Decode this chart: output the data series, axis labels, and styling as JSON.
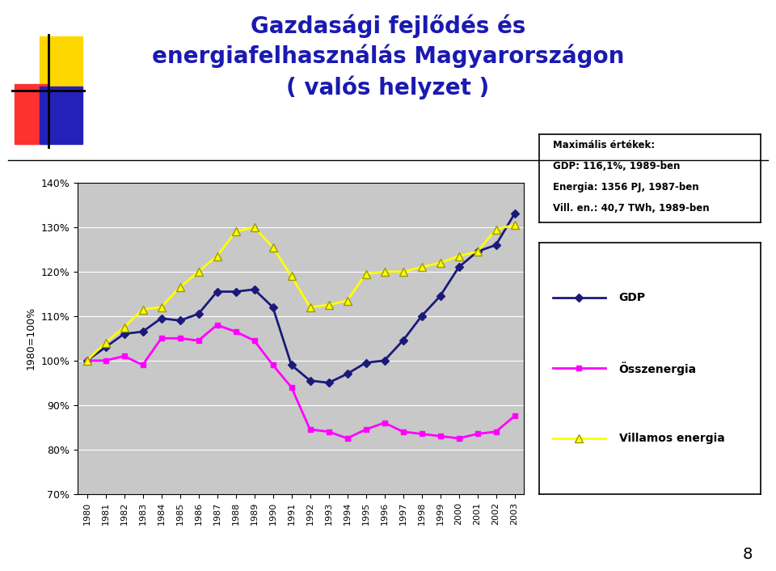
{
  "title_line1": "Gazdasági fejlődés és",
  "title_line2": "energiafelhasználás Magyarországon",
  "title_line3": "( valós helyzet )",
  "title_color": "#1A1AB0",
  "years": [
    1980,
    1981,
    1982,
    1983,
    1984,
    1985,
    1986,
    1987,
    1988,
    1989,
    1990,
    1991,
    1992,
    1993,
    1994,
    1995,
    1996,
    1997,
    1998,
    1999,
    2000,
    2001,
    2002,
    2003
  ],
  "gdp": [
    100,
    103,
    106,
    106.5,
    109.5,
    109,
    110.5,
    115.5,
    115.5,
    116,
    112,
    99,
    95.5,
    95,
    97,
    99.5,
    100,
    104.5,
    110,
    114.5,
    121,
    124.5,
    126,
    133
  ],
  "ossz": [
    100,
    100,
    101,
    99,
    105,
    105,
    104.5,
    108,
    106.5,
    104.5,
    99,
    94,
    84.5,
    84,
    82.5,
    84.5,
    86,
    84,
    83.5,
    83,
    82.5,
    83.5,
    84,
    87.5
  ],
  "villamos": [
    100,
    104,
    107.5,
    111.5,
    112,
    116.5,
    120,
    123.5,
    129,
    130,
    125.5,
    119,
    112,
    112.5,
    113.5,
    119.5,
    120,
    120,
    121,
    122,
    123.5,
    124.5,
    129.5,
    130.5
  ],
  "gdp_color": "#1A1A7A",
  "ossz_color": "#FF00FF",
  "villamos_color": "#FFFF00",
  "plot_bg": "#C8C8C8",
  "annotation_title": "Maximális értékek:",
  "annotation_gdp": "GDP: 116,1%, 1989-ben",
  "annotation_energia": "Energia: 1356 PJ, 1987-ben",
  "annotation_vill": "Vill. en.: 40,7 TWh, 1989-ben",
  "legend_gdp": "GDP",
  "legend_ossz": "Összenergia",
  "legend_villamos": "Villamos energia",
  "ylabel": "1980=100%",
  "page_number": "8",
  "ylim_min": 70,
  "ylim_max": 140
}
